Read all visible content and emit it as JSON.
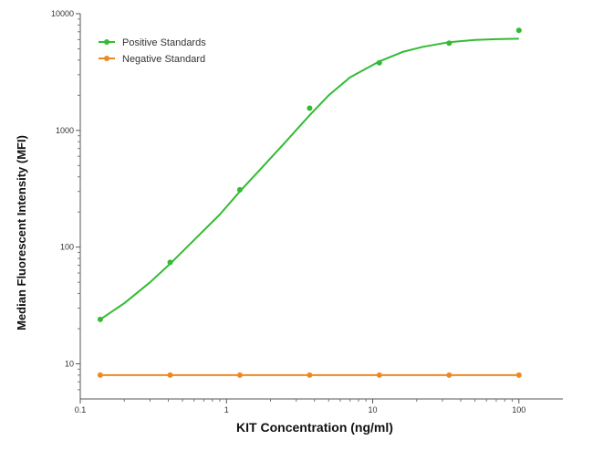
{
  "chart_data": {
    "type": "line",
    "xlabel": "KIT Concentration (ng/ml)",
    "ylabel": "Median  Fluorescent Intensity  (MFI)",
    "x_scale": "log",
    "y_scale": "log",
    "xlim": [
      0.1,
      200
    ],
    "ylim": [
      5,
      10000
    ],
    "x_ticks": [
      0.1,
      1,
      10,
      100
    ],
    "x_tick_labels": [
      "0.1",
      "1",
      "10",
      "100"
    ],
    "y_ticks": [
      10,
      100,
      1000,
      10000
    ],
    "y_tick_labels": [
      "10",
      "100",
      "1000",
      "10000"
    ],
    "grid": false,
    "legend_position": "top-left",
    "series": [
      {
        "name": "Positive Standards",
        "color": "#33bb33",
        "fit": "4PL curve",
        "x": [
          0.137,
          0.412,
          1.235,
          3.704,
          11.11,
          33.33,
          100
        ],
        "y": [
          24,
          74,
          310,
          1550,
          3800,
          5600,
          7200
        ],
        "curve_x": [
          0.137,
          0.2,
          0.3,
          0.412,
          0.6,
          0.9,
          1.235,
          1.8,
          2.5,
          3.704,
          5,
          7,
          11.11,
          16,
          22,
          33.33,
          50,
          70,
          100
        ],
        "curve_y": [
          24,
          33,
          50,
          72,
          115,
          190,
          300,
          500,
          780,
          1350,
          2000,
          2850,
          3900,
          4700,
          5200,
          5700,
          5950,
          6050,
          6100
        ]
      },
      {
        "name": "Negative Standard",
        "color": "#ee8822",
        "x": [
          0.137,
          0.412,
          1.235,
          3.704,
          11.11,
          33.33,
          100
        ],
        "y": [
          8,
          8,
          8,
          8,
          8,
          8,
          8
        ]
      }
    ]
  }
}
